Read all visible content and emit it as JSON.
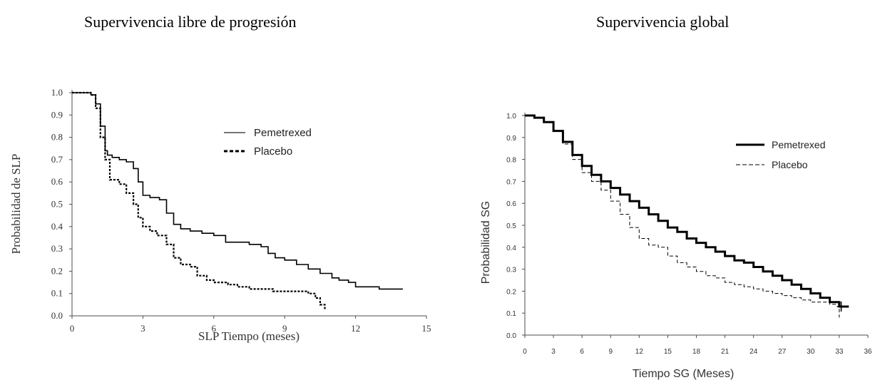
{
  "titles": {
    "left": "Supervivencia libre de progresión",
    "right": "Supervivencia global"
  },
  "chart_data": [
    {
      "type": "line",
      "title": "Supervivencia libre de progresión",
      "xlabel": "SLP Tiempo (meses)",
      "ylabel": "Probabilidad de SLP",
      "xlim": [
        0,
        15
      ],
      "ylim": [
        0,
        1
      ],
      "x_ticks": [
        "0",
        "3",
        "6",
        "9",
        "12",
        "15"
      ],
      "y_ticks": [
        "0.0",
        "0.1",
        "0.2",
        "0.3",
        "0.4",
        "0.5",
        "0.6",
        "0.7",
        "0.8",
        "0.9",
        "1.0"
      ],
      "legend_position": "top-right",
      "series": [
        {
          "name": "Pemetrexed",
          "style": "solid",
          "color": "#000000",
          "x": [
            0,
            0.5,
            0.8,
            1.0,
            1.2,
            1.4,
            1.5,
            1.7,
            2.0,
            2.3,
            2.6,
            2.8,
            3.0,
            3.3,
            3.7,
            4.0,
            4.3,
            4.6,
            5.0,
            5.5,
            6.0,
            6.5,
            7.0,
            7.5,
            8.0,
            8.3,
            8.6,
            9.0,
            9.5,
            10.0,
            10.5,
            11.0,
            11.3,
            11.7,
            12.0,
            12.5,
            13.0,
            14.0
          ],
          "y": [
            1.0,
            1.0,
            0.99,
            0.95,
            0.85,
            0.74,
            0.72,
            0.71,
            0.7,
            0.69,
            0.66,
            0.6,
            0.54,
            0.53,
            0.52,
            0.46,
            0.41,
            0.39,
            0.38,
            0.37,
            0.36,
            0.33,
            0.33,
            0.32,
            0.31,
            0.28,
            0.26,
            0.25,
            0.23,
            0.21,
            0.19,
            0.17,
            0.16,
            0.15,
            0.13,
            0.13,
            0.12,
            0.12
          ]
        },
        {
          "name": "Placebo",
          "style": "dashed",
          "color": "#000000",
          "x": [
            0,
            0.5,
            0.8,
            1.0,
            1.2,
            1.4,
            1.6,
            2.0,
            2.3,
            2.6,
            2.8,
            3.0,
            3.3,
            3.6,
            4.0,
            4.3,
            4.6,
            5.0,
            5.3,
            5.7,
            6.0,
            6.6,
            7.0,
            7.5,
            8.0,
            8.5,
            9.0,
            9.5,
            10.0,
            10.3,
            10.5,
            10.7
          ],
          "y": [
            1.0,
            1.0,
            0.99,
            0.93,
            0.8,
            0.7,
            0.61,
            0.59,
            0.55,
            0.5,
            0.44,
            0.4,
            0.38,
            0.36,
            0.32,
            0.26,
            0.23,
            0.22,
            0.18,
            0.16,
            0.15,
            0.14,
            0.13,
            0.12,
            0.12,
            0.11,
            0.11,
            0.11,
            0.1,
            0.08,
            0.05,
            0.03
          ]
        }
      ]
    },
    {
      "type": "line",
      "title": "Supervivencia global",
      "xlabel": "Tiempo SG (Meses)",
      "ylabel": "Probabilidad SG",
      "xlim": [
        0,
        36
      ],
      "ylim": [
        0,
        1
      ],
      "x_ticks": [
        "0",
        "3",
        "6",
        "9",
        "12",
        "15",
        "18",
        "21",
        "24",
        "27",
        "30",
        "33",
        "36"
      ],
      "y_ticks": [
        "0.0",
        "0.1",
        "0.2",
        "0.3",
        "0.4",
        "0.5",
        "0.6",
        "0.7",
        "0.8",
        "0.9",
        "1.0"
      ],
      "legend_position": "top-right",
      "series": [
        {
          "name": "Pemetrexed",
          "style": "solid",
          "color": "#000000",
          "x": [
            0,
            1,
            2,
            3,
            4,
            5,
            6,
            7,
            8,
            9,
            10,
            11,
            12,
            13,
            14,
            15,
            16,
            17,
            18,
            19,
            20,
            21,
            22,
            23,
            24,
            25,
            26,
            27,
            28,
            29,
            30,
            31,
            32,
            33,
            34
          ],
          "y": [
            1.0,
            0.99,
            0.97,
            0.93,
            0.88,
            0.82,
            0.77,
            0.73,
            0.7,
            0.67,
            0.64,
            0.61,
            0.58,
            0.55,
            0.52,
            0.49,
            0.47,
            0.44,
            0.42,
            0.4,
            0.38,
            0.36,
            0.34,
            0.33,
            0.31,
            0.29,
            0.27,
            0.25,
            0.23,
            0.21,
            0.19,
            0.17,
            0.15,
            0.13,
            0.13
          ]
        },
        {
          "name": "Placebo",
          "style": "dashed",
          "color": "#000000",
          "x": [
            0,
            1,
            2,
            3,
            4,
            5,
            6,
            7,
            8,
            9,
            10,
            11,
            12,
            13,
            14,
            15,
            16,
            17,
            18,
            19,
            20,
            21,
            22,
            23,
            24,
            25,
            26,
            27,
            28,
            29,
            30,
            31,
            32,
            33
          ],
          "y": [
            1.0,
            0.99,
            0.97,
            0.93,
            0.87,
            0.8,
            0.74,
            0.7,
            0.66,
            0.61,
            0.55,
            0.49,
            0.44,
            0.41,
            0.4,
            0.36,
            0.33,
            0.31,
            0.29,
            0.27,
            0.26,
            0.24,
            0.23,
            0.22,
            0.21,
            0.2,
            0.19,
            0.18,
            0.17,
            0.16,
            0.15,
            0.15,
            0.14,
            0.08
          ]
        }
      ]
    }
  ]
}
